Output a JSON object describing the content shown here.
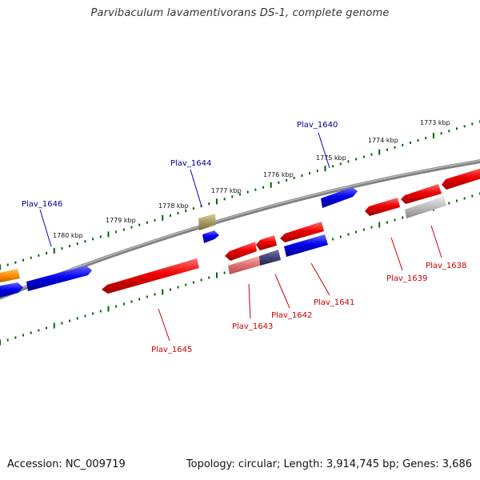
{
  "title": "Parvibaculum lavamentivorans DS-1, complete genome",
  "footer": {
    "accession": "Accession: NC_009719",
    "summary": "Topology: circular; Length: 3,914,745 bp; Genes: 3,686"
  },
  "colors": {
    "backbone": "#808080",
    "forward_gene": "#0000ee",
    "reverse_gene": "#ee0000",
    "tick": "#006600",
    "forward_label": "#000099",
    "reverse_label": "#cc0000",
    "pseudo_gene": "#bbbbbb",
    "rna_gene": "#a89c62",
    "orange_gene": "#ff8c00",
    "mixed_gene": "#444477"
  },
  "ticks": [
    {
      "label": "1773 kbp"
    },
    {
      "label": "1774 kbp"
    },
    {
      "label": "1775 kbp"
    },
    {
      "label": "1776 kbp"
    },
    {
      "label": "1777 kbp"
    },
    {
      "label": "1778 kbp"
    },
    {
      "label": "1779 kbp"
    },
    {
      "label": "1780 kbp"
    }
  ],
  "gene_labels": [
    {
      "name": "Plav_1640",
      "strand": "forward"
    },
    {
      "name": "Plav_1644",
      "strand": "forward"
    },
    {
      "name": "Plav_1646",
      "strand": "forward"
    },
    {
      "name": "Plav_1638",
      "strand": "reverse"
    },
    {
      "name": "Plav_1639",
      "strand": "reverse"
    },
    {
      "name": "Plav_1641",
      "strand": "reverse"
    },
    {
      "name": "Plav_1642",
      "strand": "reverse"
    },
    {
      "name": "Plav_1643",
      "strand": "reverse"
    },
    {
      "name": "Plav_1645",
      "strand": "reverse"
    }
  ]
}
